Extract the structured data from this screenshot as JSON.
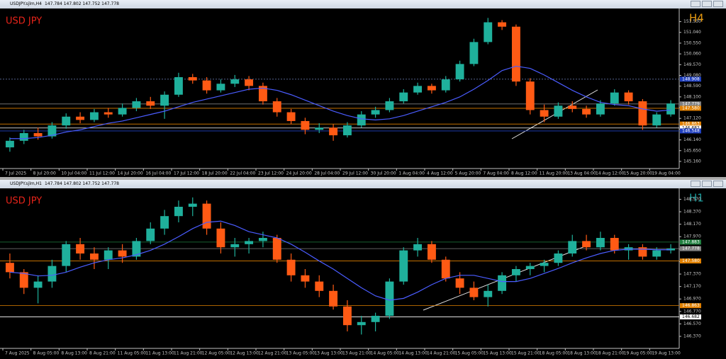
{
  "chart_data": [
    {
      "type": "candlestick",
      "window_title": "USDJPY.sjlm,H4",
      "ohlc_info": "147.784 147.802 147.752 147.778",
      "label": "USD JPY",
      "timeframe": "H4",
      "up_color": "#1fb09c",
      "down_color": "#ff5a14",
      "ma_color": "#4a5cff",
      "grid": false,
      "ylim": [
        144.9,
        152.0
      ],
      "yticks": [
        {
          "value": 145.16,
          "label": "145.160"
        },
        {
          "value": 145.65,
          "label": "145.650"
        },
        {
          "value": 146.14,
          "label": "146.140"
        },
        {
          "value": 146.63,
          "label": "146.630"
        },
        {
          "value": 147.12,
          "label": "147.120"
        },
        {
          "value": 147.61,
          "label": "147.610"
        },
        {
          "value": 148.1,
          "label": "148.100"
        },
        {
          "value": 148.59,
          "label": "148.590"
        },
        {
          "value": 149.08,
          "label": "149.080"
        },
        {
          "value": 149.57,
          "label": "149.570"
        },
        {
          "value": 150.06,
          "label": "150.060"
        },
        {
          "value": 150.55,
          "label": "150.550"
        },
        {
          "value": 151.04,
          "label": "151.040"
        },
        {
          "value": 151.53,
          "label": "151.530"
        }
      ],
      "levels": [
        {
          "value": 148.908,
          "label": "148.908",
          "color": "#2040c0",
          "style": "dotted"
        },
        {
          "value": 147.779,
          "label": "147.779",
          "color": "#808080",
          "style": "solid"
        },
        {
          "value": 147.58,
          "label": "147.580",
          "color": "#e08000",
          "style": "solid"
        },
        {
          "value": 146.863,
          "label": "146.863",
          "color": "#e08000",
          "style": "solid"
        },
        {
          "value": 146.682,
          "label": "146.682",
          "color": "#ffffff",
          "style": "solid"
        },
        {
          "value": 146.548,
          "label": "146.548",
          "color": "#2040c0",
          "style": "solid"
        }
      ],
      "categories": [
        "7 Jul 2025",
        null,
        "8 Jul 20:00",
        null,
        "10 Jul 04:00",
        null,
        "11 Jul 12:00",
        null,
        "14 Jul 20:00",
        null,
        "16 Jul 04:00",
        null,
        "17 Jul 12:00",
        null,
        "18 Jul 20:00",
        null,
        "22 Jul 04:00",
        null,
        "23 Jul 12:00",
        null,
        "24 Jul 20:00",
        null,
        "28 Jul 04:00",
        null,
        "29 Jul 12:00",
        null,
        "30 Jul 20:00",
        null,
        "1 Aug 04:00",
        null,
        "4 Aug 12:00",
        null,
        "5 Aug 20:00",
        null,
        "7 Aug 04:00",
        null,
        "8 Aug 12:00",
        null,
        "11 Aug 20:00",
        null,
        "13 Aug 04:00",
        null,
        "14 Aug 12:00",
        null,
        "15 Aug 20:00",
        null,
        "19 Aug 04:00",
        null
      ],
      "ohlc": [
        [
          145.8,
          146.25,
          145.6,
          146.1
        ],
        [
          146.1,
          146.6,
          145.95,
          146.45
        ],
        [
          146.45,
          146.7,
          146.15,
          146.3
        ],
        [
          146.3,
          146.95,
          146.2,
          146.8
        ],
        [
          146.8,
          147.35,
          146.65,
          147.2
        ],
        [
          147.2,
          147.4,
          146.9,
          147.05
        ],
        [
          147.05,
          147.55,
          146.95,
          147.4
        ],
        [
          147.4,
          147.6,
          147.15,
          147.3
        ],
        [
          147.3,
          147.8,
          147.2,
          147.6
        ],
        [
          147.6,
          148.05,
          147.45,
          147.9
        ],
        [
          147.9,
          148.1,
          147.55,
          147.7
        ],
        [
          147.7,
          148.35,
          147.1,
          148.2
        ],
        [
          148.2,
          149.2,
          148.1,
          149.0
        ],
        [
          149.0,
          149.15,
          148.7,
          148.85
        ],
        [
          148.85,
          149.0,
          148.25,
          148.4
        ],
        [
          148.4,
          148.9,
          148.3,
          148.7
        ],
        [
          148.7,
          149.1,
          148.55,
          148.9
        ],
        [
          148.9,
          149.05,
          148.4,
          148.6
        ],
        [
          148.6,
          148.75,
          147.75,
          147.9
        ],
        [
          147.9,
          148.05,
          147.2,
          147.4
        ],
        [
          147.4,
          147.55,
          146.85,
          147.0
        ],
        [
          147.0,
          147.15,
          146.4,
          146.6
        ],
        [
          146.6,
          146.9,
          146.45,
          146.7
        ],
        [
          146.7,
          146.85,
          146.1,
          146.35
        ],
        [
          146.35,
          146.95,
          146.25,
          146.8
        ],
        [
          146.8,
          147.45,
          146.7,
          147.3
        ],
        [
          147.3,
          147.65,
          147.15,
          147.5
        ],
        [
          147.5,
          148.05,
          147.4,
          147.9
        ],
        [
          147.9,
          148.45,
          147.8,
          148.3
        ],
        [
          148.3,
          148.75,
          148.2,
          148.6
        ],
        [
          148.6,
          148.7,
          148.25,
          148.4
        ],
        [
          148.4,
          149.05,
          148.3,
          148.9
        ],
        [
          148.9,
          149.75,
          148.8,
          149.6
        ],
        [
          149.6,
          150.75,
          149.5,
          150.6
        ],
        [
          150.6,
          151.7,
          150.5,
          151.5
        ],
        [
          151.5,
          151.6,
          151.15,
          151.3
        ],
        [
          151.3,
          151.4,
          148.6,
          148.8
        ],
        [
          148.8,
          148.95,
          147.3,
          147.5
        ],
        [
          147.5,
          147.75,
          146.95,
          147.2
        ],
        [
          147.2,
          147.85,
          147.1,
          147.7
        ],
        [
          147.7,
          147.9,
          147.4,
          147.55
        ],
        [
          147.55,
          147.7,
          147.15,
          147.3
        ],
        [
          147.3,
          147.95,
          147.2,
          147.8
        ],
        [
          147.8,
          148.45,
          147.7,
          148.3
        ],
        [
          148.3,
          148.4,
          147.75,
          147.9
        ],
        [
          147.9,
          148.0,
          146.6,
          146.8
        ],
        [
          146.8,
          147.4,
          146.7,
          147.3
        ],
        [
          147.3,
          147.95,
          147.2,
          147.8
        ]
      ],
      "ma": [
        146.2,
        146.2,
        146.25,
        146.35,
        146.5,
        146.6,
        146.75,
        146.9,
        147.0,
        147.15,
        147.3,
        147.45,
        147.65,
        147.85,
        148.0,
        148.15,
        148.3,
        148.45,
        148.5,
        148.4,
        148.2,
        147.95,
        147.7,
        147.45,
        147.25,
        147.1,
        147.05,
        147.1,
        147.25,
        147.45,
        147.65,
        147.85,
        148.1,
        148.45,
        148.85,
        149.3,
        149.5,
        149.4,
        149.1,
        148.75,
        148.4,
        148.1,
        147.85,
        147.75,
        147.7,
        147.55,
        147.45,
        147.5
      ]
    },
    {
      "type": "candlestick",
      "window_title": "USDJPY.sjlm,H1",
      "ohlc_info": "147.784 147.802 147.752 147.778",
      "label": "USD JPY",
      "timeframe": "H1",
      "up_color": "#1fb09c",
      "down_color": "#ff5a14",
      "ma_color": "#4a5cff",
      "grid": false,
      "ylim": [
        146.2,
        148.7
      ],
      "yticks": [
        {
          "value": 146.37,
          "label": "146.370"
        },
        {
          "value": 146.57,
          "label": "146.570"
        },
        {
          "value": 146.77,
          "label": "146.770"
        },
        {
          "value": 146.97,
          "label": "146.970"
        },
        {
          "value": 147.17,
          "label": "147.170"
        },
        {
          "value": 147.37,
          "label": "147.370"
        },
        {
          "value": 147.57,
          "label": "147.570"
        },
        {
          "value": 147.77,
          "label": "147.770"
        },
        {
          "value": 147.97,
          "label": "147.970"
        },
        {
          "value": 148.17,
          "label": "148.170"
        },
        {
          "value": 148.37,
          "label": "148.370"
        },
        {
          "value": 148.57,
          "label": "148.570"
        }
      ],
      "levels": [
        {
          "value": 147.883,
          "label": "147.883",
          "color": "#208040",
          "style": "solid"
        },
        {
          "value": 147.778,
          "label": "147.778",
          "color": "#808080",
          "style": "solid"
        },
        {
          "value": 147.58,
          "label": "147.580",
          "color": "#e08000",
          "style": "solid"
        },
        {
          "value": 146.863,
          "label": "146.863",
          "color": "#e08000",
          "style": "solid"
        },
        {
          "value": 146.682,
          "label": "146.682",
          "color": "#ffffff",
          "style": "solid"
        }
      ],
      "categories": [
        "7 Aug 2025",
        null,
        "8 Aug 05:00",
        null,
        "8 Aug 13:00",
        null,
        "8 Aug 21:00",
        null,
        "11 Aug 05:00",
        null,
        "11 Aug 13:00",
        null,
        "11 Aug 21:00",
        null,
        "12 Aug 05:00",
        null,
        "12 Aug 13:00",
        null,
        "12 Aug 21:00",
        null,
        "13 Aug 05:00",
        null,
        "13 Aug 13:00",
        null,
        "13 Aug 21:00",
        null,
        "14 Aug 05:00",
        null,
        "14 Aug 13:00",
        null,
        "14 Aug 21:00",
        null,
        "15 Aug 05:00",
        null,
        "15 Aug 13:00",
        null,
        "15 Aug 21:00",
        null,
        "18 Aug 05:00",
        null,
        "18 Aug 13:00",
        null,
        "18 Aug 21:00",
        null,
        "19 Aug 05:00",
        null,
        "19 Aug 13:00",
        null
      ],
      "ohlc": [
        [
          147.55,
          147.7,
          147.3,
          147.4
        ],
        [
          147.4,
          147.45,
          147.05,
          147.15
        ],
        [
          147.15,
          147.35,
          146.9,
          147.25
        ],
        [
          147.25,
          147.6,
          147.15,
          147.5
        ],
        [
          147.5,
          147.9,
          147.4,
          147.85
        ],
        [
          147.85,
          147.95,
          147.6,
          147.7
        ],
        [
          147.7,
          147.8,
          147.45,
          147.6
        ],
        [
          147.6,
          147.8,
          147.45,
          147.75
        ],
        [
          147.75,
          147.85,
          147.55,
          147.65
        ],
        [
          147.65,
          147.95,
          147.6,
          147.9
        ],
        [
          147.9,
          148.2,
          147.85,
          148.1
        ],
        [
          148.1,
          148.4,
          148.0,
          148.3
        ],
        [
          148.3,
          148.55,
          148.2,
          148.45
        ],
        [
          148.45,
          148.6,
          148.3,
          148.5
        ],
        [
          148.5,
          148.55,
          148.0,
          148.1
        ],
        [
          148.1,
          148.2,
          147.7,
          147.8
        ],
        [
          147.8,
          147.95,
          147.65,
          147.85
        ],
        [
          147.85,
          147.95,
          147.7,
          147.9
        ],
        [
          147.9,
          148.05,
          147.8,
          147.95
        ],
        [
          147.95,
          148.0,
          147.55,
          147.6
        ],
        [
          147.6,
          147.7,
          147.25,
          147.35
        ],
        [
          147.35,
          147.45,
          147.15,
          147.25
        ],
        [
          147.25,
          147.35,
          147.0,
          147.1
        ],
        [
          147.1,
          147.2,
          146.8,
          146.85
        ],
        [
          146.85,
          146.95,
          146.45,
          146.55
        ],
        [
          146.55,
          146.7,
          146.4,
          146.6
        ],
        [
          146.6,
          146.75,
          146.45,
          146.7
        ],
        [
          146.7,
          147.3,
          146.65,
          147.25
        ],
        [
          147.25,
          147.8,
          147.2,
          147.75
        ],
        [
          147.75,
          147.95,
          147.65,
          147.85
        ],
        [
          147.85,
          147.9,
          147.55,
          147.6
        ],
        [
          147.6,
          147.65,
          147.25,
          147.3
        ],
        [
          147.3,
          147.4,
          147.05,
          147.15
        ],
        [
          147.15,
          147.25,
          146.95,
          147.0
        ],
        [
          147.0,
          147.2,
          146.85,
          147.1
        ],
        [
          147.1,
          147.4,
          147.05,
          147.35
        ],
        [
          147.35,
          147.5,
          147.25,
          147.45
        ],
        [
          147.45,
          147.55,
          147.35,
          147.5
        ],
        [
          147.5,
          147.6,
          147.4,
          147.55
        ],
        [
          147.55,
          147.75,
          147.5,
          147.7
        ],
        [
          147.7,
          148.0,
          147.65,
          147.9
        ],
        [
          147.9,
          148.0,
          147.75,
          147.8
        ],
        [
          147.8,
          148.05,
          147.75,
          147.95
        ],
        [
          147.95,
          148.0,
          147.7,
          147.75
        ],
        [
          147.75,
          147.85,
          147.6,
          147.8
        ],
        [
          147.8,
          147.85,
          147.6,
          147.65
        ],
        [
          147.65,
          147.8,
          147.6,
          147.75
        ],
        [
          147.75,
          147.85,
          147.7,
          147.78
        ]
      ],
      "ma": [
        147.4,
        147.38,
        147.34,
        147.35,
        147.4,
        147.48,
        147.55,
        147.6,
        147.63,
        147.68,
        147.75,
        147.85,
        147.97,
        148.1,
        148.2,
        148.22,
        148.15,
        148.05,
        148.0,
        147.95,
        147.85,
        147.72,
        147.58,
        147.45,
        147.3,
        147.15,
        147.02,
        146.95,
        146.98,
        147.08,
        147.2,
        147.3,
        147.35,
        147.35,
        147.3,
        147.25,
        147.25,
        147.3,
        147.38,
        147.46,
        147.55,
        147.63,
        147.7,
        147.75,
        147.77,
        147.77,
        147.76,
        147.76
      ]
    }
  ]
}
